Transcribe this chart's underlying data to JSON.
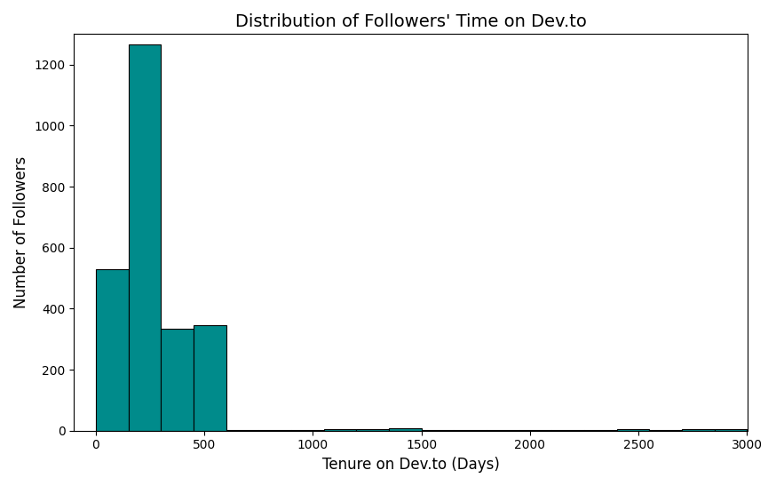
{
  "title": "Distribution of Followers' Time on Dev.to",
  "xlabel": "Tenure on Dev.to (Days)",
  "ylabel": "Number of Followers",
  "bar_color": "#008B8B",
  "bar_edgecolor": "#000000",
  "xlim": [
    -100,
    3000
  ],
  "ylim": [
    0,
    1300
  ],
  "bin_edges": [
    0,
    150,
    300,
    450,
    600,
    750,
    900,
    1050,
    1200,
    1350,
    1500,
    1650,
    1800,
    1950,
    2100,
    2250,
    2400,
    2550,
    2700,
    2850,
    3000
  ],
  "bin_heights": [
    530,
    1265,
    335,
    345,
    3,
    2,
    2,
    5,
    5,
    8,
    3,
    2,
    3,
    2,
    2,
    2,
    5,
    2,
    4,
    5
  ],
  "title_fontsize": 14,
  "label_fontsize": 12,
  "tick_fontsize": 10,
  "figsize": [
    8.74,
    5.47
  ],
  "dpi": 100,
  "xticks": [
    0,
    500,
    1000,
    1500,
    2000,
    2500,
    3000
  ],
  "yticks": [
    0,
    200,
    400,
    600,
    800,
    1000,
    1200
  ]
}
